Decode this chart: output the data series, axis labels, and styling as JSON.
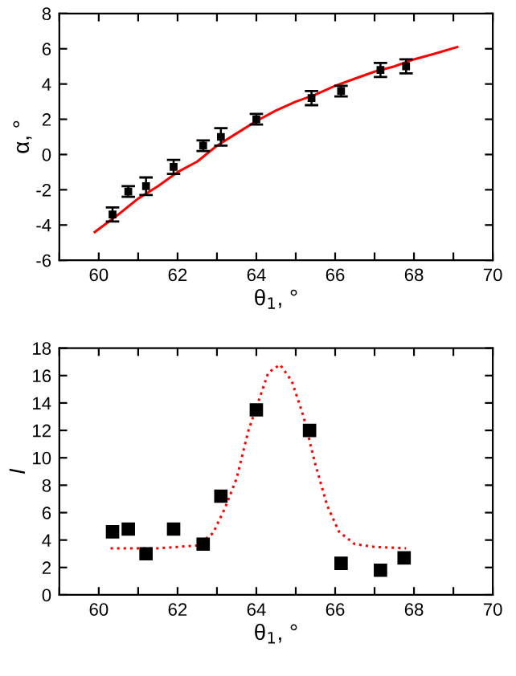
{
  "chart_data": [
    {
      "type": "scatter",
      "xlabel": "θ$_{1}$, °",
      "ylabel": "α, °",
      "xlim": [
        59,
        70
      ],
      "ylim": [
        -6,
        8
      ],
      "xticks": [
        {
          "value": 59,
          "label": null
        },
        60,
        {
          "value": 61,
          "label": null
        },
        62,
        {
          "value": 63,
          "label": null
        },
        64,
        {
          "value": 65,
          "label": null
        },
        66,
        {
          "value": 67,
          "label": null
        },
        68,
        {
          "value": 69,
          "label": null
        },
        70
      ],
      "yticks": [
        -6,
        -4,
        -2,
        0,
        2,
        4,
        6,
        8
      ],
      "grid": false,
      "legend": false,
      "series": [
        {
          "color": "#000000",
          "marker": "square",
          "x": [
            60.35,
            60.75,
            61.2,
            61.9,
            62.65,
            63.1,
            64.0,
            65.4,
            66.15,
            67.15,
            67.8
          ],
          "values": [
            -3.4,
            -2.1,
            -1.8,
            -0.7,
            0.5,
            1.0,
            2.0,
            3.2,
            3.6,
            4.8,
            5.0
          ],
          "errors": [
            0.4,
            0.3,
            0.5,
            0.4,
            0.3,
            0.5,
            0.3,
            0.4,
            0.3,
            0.4,
            0.4
          ]
        },
        {
          "type": "line",
          "color": "#ff0000",
          "line_style": "solid",
          "x": [
            59.9,
            60.5,
            61,
            61.5,
            62,
            62.5,
            63,
            63.5,
            64,
            64.5,
            65,
            65.5,
            66,
            66.5,
            67,
            67.5,
            68,
            68.5,
            69.1
          ],
          "values": [
            -4.4,
            -3.4,
            -2.5,
            -1.8,
            -1.0,
            -0.4,
            0.5,
            1.2,
            1.9,
            2.5,
            3.0,
            3.4,
            3.9,
            4.3,
            4.7,
            5.0,
            5.4,
            5.7,
            6.1
          ]
        }
      ]
    },
    {
      "type": "scatter",
      "xlabel": "θ$_{1}$, °",
      "ylabel": "I",
      "xlim": [
        59,
        70
      ],
      "ylim": [
        0,
        18
      ],
      "xticks": [
        {
          "value": 59,
          "label": null
        },
        60,
        {
          "value": 61,
          "label": null
        },
        62,
        {
          "value": 63,
          "label": null
        },
        64,
        {
          "value": 65,
          "label": null
        },
        66,
        {
          "value": 67,
          "label": null
        },
        68,
        {
          "value": 69,
          "label": null
        },
        70
      ],
      "yticks": [
        0,
        2,
        4,
        6,
        8,
        10,
        12,
        14,
        16,
        18
      ],
      "grid": false,
      "legend": false,
      "series": [
        {
          "color": "#000000",
          "marker": "square",
          "x": [
            60.35,
            60.75,
            61.2,
            61.9,
            62.65,
            63.1,
            64.0,
            65.35,
            66.15,
            67.15,
            67.75
          ],
          "values": [
            4.6,
            4.8,
            3.0,
            4.8,
            3.7,
            7.2,
            13.5,
            12.0,
            2.3,
            1.8,
            2.7
          ]
        },
        {
          "type": "line",
          "color": "#ff0000",
          "line_style": "dotted",
          "x": [
            60.3,
            61,
            61.5,
            62,
            62.5,
            62.9,
            63.2,
            63.5,
            63.8,
            64.1,
            64.3,
            64.6,
            64.9,
            65.2,
            65.5,
            65.8,
            66.1,
            66.5,
            67,
            67.8
          ],
          "values": [
            3.4,
            3.4,
            3.4,
            3.5,
            3.6,
            4.5,
            6.3,
            8.5,
            12,
            14.5,
            16.2,
            16.8,
            15.6,
            13,
            9.5,
            6.5,
            4.6,
            3.7,
            3.5,
            3.4
          ]
        }
      ]
    }
  ]
}
